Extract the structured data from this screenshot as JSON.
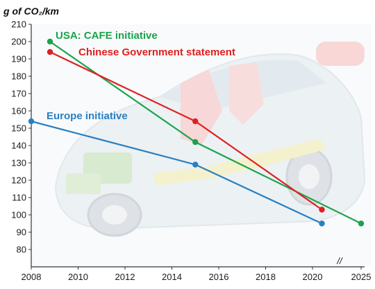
{
  "chart_data": {
    "type": "line",
    "title": "",
    "ylabel": "g of CO₂/km",
    "xlabel": "",
    "xlim": [
      2008,
      2025
    ],
    "ylim": [
      70,
      210
    ],
    "x_ticks": [
      "2008",
      "2010",
      "2012",
      "2014",
      "2016",
      "2018",
      "2020",
      "2025"
    ],
    "y_ticks": [
      "80",
      "90",
      "100",
      "110",
      "120",
      "130",
      "140",
      "150",
      "160",
      "170",
      "180",
      "190",
      "200",
      "210"
    ],
    "axis_break_marker": "//",
    "grid": false,
    "series": [
      {
        "name": "USA: CAFE initiative",
        "color": "#1aa34a",
        "points": [
          [
            2008.8,
            200
          ],
          [
            2015,
            142
          ],
          [
            2025,
            95
          ]
        ]
      },
      {
        "name": "Chinese Government statement",
        "color": "#e02020",
        "points": [
          [
            2008.8,
            194
          ],
          [
            2015,
            154
          ],
          [
            2020.4,
            103
          ]
        ]
      },
      {
        "name": "Europe initiative",
        "color": "#2a7fc0",
        "points": [
          [
            2008,
            154
          ],
          [
            2015,
            129
          ],
          [
            2020.4,
            95
          ]
        ]
      }
    ]
  }
}
